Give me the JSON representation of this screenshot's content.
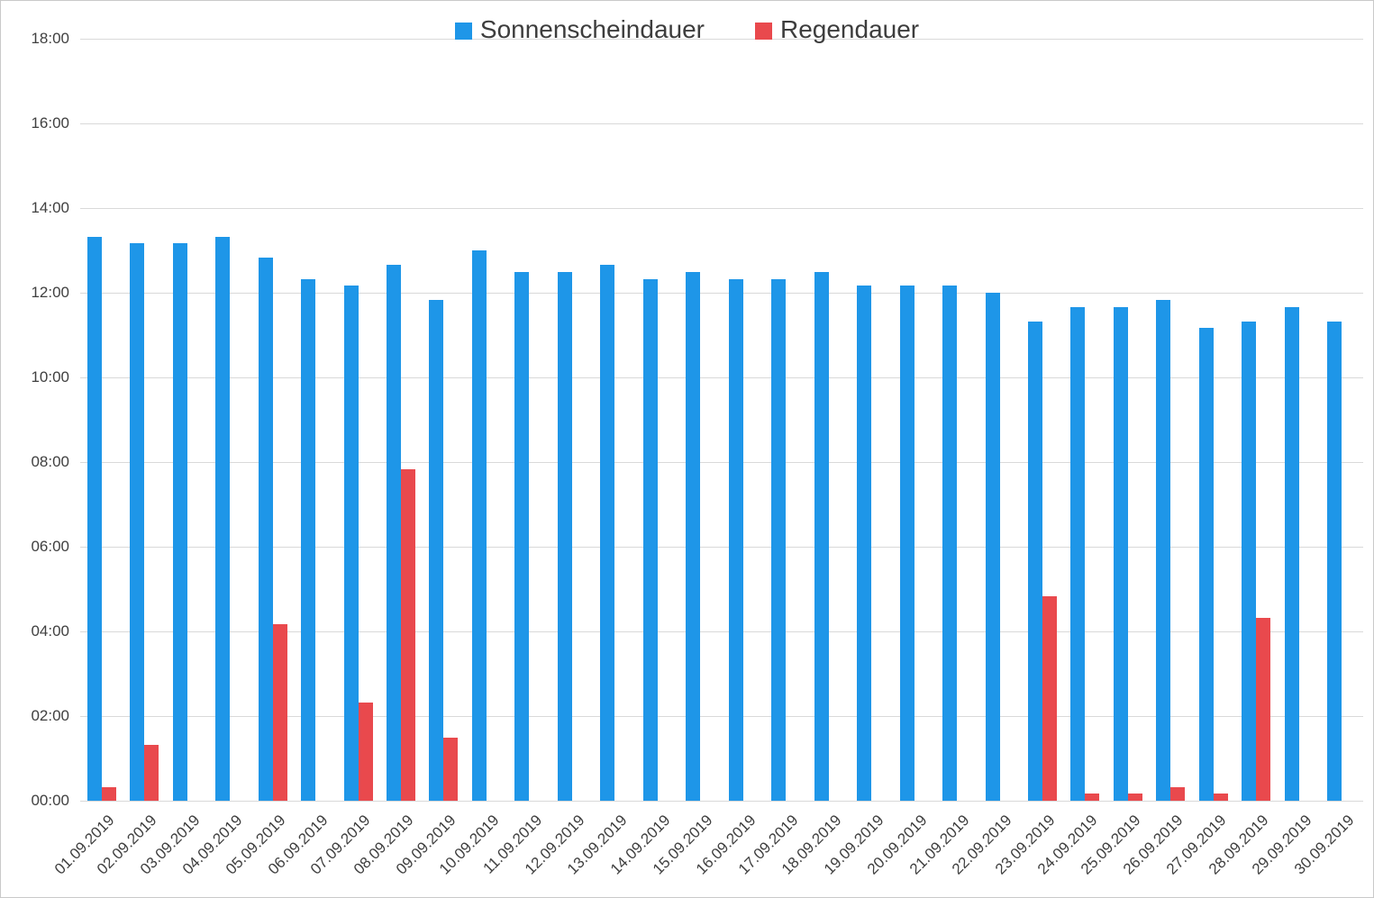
{
  "chart_data": {
    "type": "bar",
    "title": "",
    "xlabel": "",
    "ylabel": "",
    "ylim_hours": [
      0,
      18
    ],
    "y_tick_step_hours": 2,
    "y_tick_labels": [
      "00:00",
      "02:00",
      "04:00",
      "06:00",
      "08:00",
      "10:00",
      "12:00",
      "14:00",
      "16:00",
      "18:00"
    ],
    "grid": true,
    "legend_position": "top-center",
    "categories": [
      "01.09.2019",
      "02.09.2019",
      "03.09.2019",
      "04.09.2019",
      "05.09.2019",
      "06.09.2019",
      "07.09.2019",
      "08.09.2019",
      "09.09.2019",
      "10.09.2019",
      "11.09.2019",
      "12.09.2019",
      "13.09.2019",
      "14.09.2019",
      "15.09.2019",
      "16.09.2019",
      "17.09.2019",
      "18.09.2019",
      "19.09.2019",
      "20.09.2019",
      "21.09.2019",
      "22.09.2019",
      "23.09.2019",
      "24.09.2019",
      "25.09.2019",
      "26.09.2019",
      "27.09.2019",
      "28.09.2019",
      "29.09.2019",
      "30.09.2019"
    ],
    "series": [
      {
        "name": "Sonnenscheindauer",
        "key": "sonnenscheindauer",
        "color": "#1E96E8",
        "unit": "hours",
        "values": [
          13.33,
          13.17,
          13.17,
          13.33,
          12.83,
          12.33,
          12.17,
          12.67,
          11.83,
          13.0,
          12.5,
          12.5,
          12.67,
          12.33,
          12.5,
          12.33,
          12.33,
          12.5,
          12.17,
          12.17,
          12.17,
          12.0,
          11.33,
          11.67,
          11.67,
          11.83,
          11.17,
          11.33,
          11.67,
          11.33
        ]
      },
      {
        "name": "Regendauer",
        "key": "regendauer",
        "color": "#E9494D",
        "unit": "hours",
        "values": [
          0.33,
          1.33,
          0,
          0,
          4.17,
          0,
          2.33,
          7.83,
          1.5,
          0,
          0,
          0,
          0,
          0,
          0,
          0,
          0,
          0,
          0,
          0,
          0,
          0,
          4.83,
          0.17,
          0.17,
          0.33,
          0.17,
          4.33,
          0,
          0
        ]
      }
    ]
  }
}
